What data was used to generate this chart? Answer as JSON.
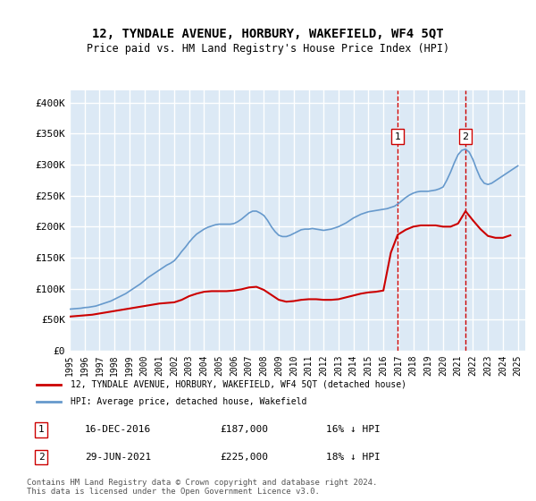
{
  "title": "12, TYNDALE AVENUE, HORBURY, WAKEFIELD, WF4 5QT",
  "subtitle": "Price paid vs. HM Land Registry's House Price Index (HPI)",
  "xlabel": "",
  "ylabel": "",
  "ylim": [
    0,
    420000
  ],
  "yticks": [
    0,
    50000,
    100000,
    150000,
    200000,
    250000,
    300000,
    350000,
    400000
  ],
  "ytick_labels": [
    "£0",
    "£50K",
    "£100K",
    "£150K",
    "£200K",
    "£250K",
    "£300K",
    "£350K",
    "£400K"
  ],
  "xlim_start": 1995.0,
  "xlim_end": 2025.5,
  "xtick_years": [
    1995,
    1996,
    1997,
    1998,
    1999,
    2000,
    2001,
    2002,
    2003,
    2004,
    2005,
    2006,
    2007,
    2008,
    2009,
    2010,
    2011,
    2012,
    2013,
    2014,
    2015,
    2016,
    2017,
    2018,
    2019,
    2020,
    2021,
    2022,
    2023,
    2024,
    2025
  ],
  "bg_color": "#dce9f5",
  "grid_color": "#ffffff",
  "red_line_color": "#cc0000",
  "blue_line_color": "#6699cc",
  "vline_color": "#cc0000",
  "legend_label_red": "12, TYNDALE AVENUE, HORBURY, WAKEFIELD, WF4 5QT (detached house)",
  "legend_label_blue": "HPI: Average price, detached house, Wakefield",
  "marker1_x": 2016.96,
  "marker1_y": 187000,
  "marker1_label": "1",
  "marker1_text": "16-DEC-2016",
  "marker1_price": "£187,000",
  "marker1_hpi": "16% ↓ HPI",
  "marker2_x": 2021.5,
  "marker2_y": 225000,
  "marker2_label": "2",
  "marker2_text": "29-JUN-2021",
  "marker2_price": "£225,000",
  "marker2_hpi": "18% ↓ HPI",
  "footer": "Contains HM Land Registry data © Crown copyright and database right 2024.\nThis data is licensed under the Open Government Licence v3.0.",
  "hpi_years": [
    1995.0,
    1995.25,
    1995.5,
    1995.75,
    1996.0,
    1996.25,
    1996.5,
    1996.75,
    1997.0,
    1997.25,
    1997.5,
    1997.75,
    1998.0,
    1998.25,
    1998.5,
    1998.75,
    1999.0,
    1999.25,
    1999.5,
    1999.75,
    2000.0,
    2000.25,
    2000.5,
    2000.75,
    2001.0,
    2001.25,
    2001.5,
    2001.75,
    2002.0,
    2002.25,
    2002.5,
    2002.75,
    2003.0,
    2003.25,
    2003.5,
    2003.75,
    2004.0,
    2004.25,
    2004.5,
    2004.75,
    2005.0,
    2005.25,
    2005.5,
    2005.75,
    2006.0,
    2006.25,
    2006.5,
    2006.75,
    2007.0,
    2007.25,
    2007.5,
    2007.75,
    2008.0,
    2008.25,
    2008.5,
    2008.75,
    2009.0,
    2009.25,
    2009.5,
    2009.75,
    2010.0,
    2010.25,
    2010.5,
    2010.75,
    2011.0,
    2011.25,
    2011.5,
    2011.75,
    2012.0,
    2012.25,
    2012.5,
    2012.75,
    2013.0,
    2013.25,
    2013.5,
    2013.75,
    2014.0,
    2014.25,
    2014.5,
    2014.75,
    2015.0,
    2015.25,
    2015.5,
    2015.75,
    2016.0,
    2016.25,
    2016.5,
    2016.75,
    2017.0,
    2017.25,
    2017.5,
    2017.75,
    2018.0,
    2018.25,
    2018.5,
    2018.75,
    2019.0,
    2019.25,
    2019.5,
    2019.75,
    2020.0,
    2020.25,
    2020.5,
    2020.75,
    2021.0,
    2021.25,
    2021.5,
    2021.75,
    2022.0,
    2022.25,
    2022.5,
    2022.75,
    2023.0,
    2023.25,
    2023.5,
    2023.75,
    2024.0,
    2024.25,
    2024.5,
    2024.75,
    2025.0
  ],
  "hpi_values": [
    67000,
    67500,
    68000,
    68500,
    69500,
    70000,
    71000,
    72000,
    74000,
    76000,
    78000,
    80000,
    83000,
    86000,
    89000,
    92000,
    96000,
    100000,
    104000,
    108000,
    113000,
    118000,
    122000,
    126000,
    130000,
    134000,
    138000,
    141000,
    145000,
    152000,
    160000,
    167000,
    175000,
    182000,
    188000,
    192000,
    196000,
    199000,
    201000,
    203000,
    204000,
    204000,
    204000,
    204000,
    205000,
    208000,
    212000,
    217000,
    222000,
    225000,
    225000,
    222000,
    218000,
    210000,
    200000,
    192000,
    186000,
    184000,
    184000,
    186000,
    189000,
    192000,
    195000,
    196000,
    196000,
    197000,
    196000,
    195000,
    194000,
    195000,
    196000,
    198000,
    200000,
    203000,
    206000,
    210000,
    214000,
    217000,
    220000,
    222000,
    224000,
    225000,
    226000,
    227000,
    228000,
    229000,
    231000,
    233000,
    237000,
    242000,
    247000,
    251000,
    254000,
    256000,
    257000,
    257000,
    257000,
    258000,
    259000,
    261000,
    264000,
    275000,
    288000,
    303000,
    316000,
    323000,
    325000,
    320000,
    308000,
    292000,
    278000,
    270000,
    268000,
    270000,
    274000,
    278000,
    282000,
    286000,
    290000,
    294000,
    298000
  ],
  "red_years": [
    1995.0,
    1995.5,
    1996.0,
    1996.5,
    1997.0,
    1997.5,
    1998.0,
    1998.5,
    1999.0,
    1999.5,
    2000.0,
    2000.5,
    2001.0,
    2001.5,
    2002.0,
    2002.5,
    2003.0,
    2003.5,
    2004.0,
    2004.5,
    2005.0,
    2005.5,
    2006.0,
    2006.5,
    2007.0,
    2007.5,
    2008.0,
    2008.5,
    2009.0,
    2009.5,
    2010.0,
    2010.5,
    2011.0,
    2011.5,
    2012.0,
    2012.5,
    2013.0,
    2013.5,
    2014.0,
    2014.5,
    2015.0,
    2015.5,
    2016.0,
    2016.5,
    2016.96,
    2017.5,
    2018.0,
    2018.5,
    2019.0,
    2019.5,
    2020.0,
    2020.5,
    2021.0,
    2021.5,
    2022.0,
    2022.5,
    2023.0,
    2023.5,
    2024.0,
    2024.5
  ],
  "red_values": [
    55000,
    56000,
    57000,
    58000,
    60000,
    62000,
    64000,
    66000,
    68000,
    70000,
    72000,
    74000,
    76000,
    77000,
    78000,
    82000,
    88000,
    92000,
    95000,
    96000,
    96000,
    96000,
    97000,
    99000,
    102000,
    103000,
    98000,
    90000,
    82000,
    79000,
    80000,
    82000,
    83000,
    83000,
    82000,
    82000,
    83000,
    86000,
    89000,
    92000,
    94000,
    95000,
    97000,
    158000,
    187000,
    195000,
    200000,
    202000,
    202000,
    202000,
    200000,
    200000,
    205000,
    225000,
    210000,
    196000,
    185000,
    182000,
    182000,
    186000
  ]
}
